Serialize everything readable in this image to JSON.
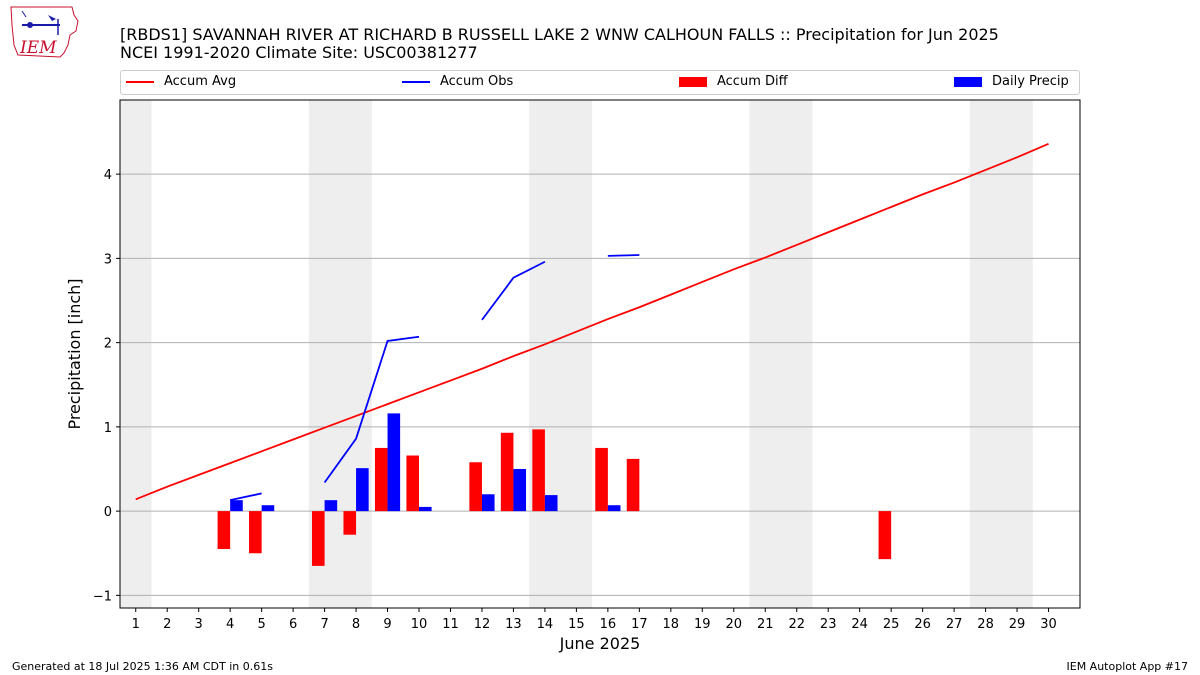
{
  "header": {
    "title_line1": "[RBDS1] SAVANNAH RIVER  AT RICHARD B RUSSELL LAKE 2 WNW CALHOUN FALLS :: Precipitation for Jun 2025",
    "title_line2": "NCEI 1991-2020 Climate Site: USC00381277"
  },
  "logo": {
    "text": "IEM"
  },
  "footer": {
    "left": "Generated at 18 Jul 2025 1:36 AM CDT in 0.61s",
    "right": "IEM Autoplot App #17"
  },
  "colors": {
    "avg": "#ff0000",
    "obs": "#0000ff",
    "diff": "#ff0000",
    "daily": "#0000ff",
    "weekend": "#eeeeee",
    "grid": "#b0b0b0"
  },
  "chart_data": {
    "type": "bar",
    "xlabel": "June 2025",
    "ylabel": "Precipitation [inch]",
    "xlim": [
      0.5,
      31
    ],
    "ylim": [
      -1.15,
      4.88
    ],
    "yticks": [
      -1,
      0,
      1,
      2,
      3,
      4
    ],
    "grid": true,
    "legend_placement": "top",
    "days": [
      1,
      2,
      3,
      4,
      5,
      6,
      7,
      8,
      9,
      10,
      11,
      12,
      13,
      14,
      15,
      16,
      17,
      18,
      19,
      20,
      21,
      22,
      23,
      24,
      25,
      26,
      27,
      28,
      29,
      30
    ],
    "shaded_spans": [
      [
        0.5,
        1.5
      ],
      [
        6.5,
        8.5
      ],
      [
        13.5,
        15.5
      ],
      [
        20.5,
        22.5
      ],
      [
        27.5,
        29.5
      ]
    ],
    "legend": [
      "Accum Avg",
      "Accum Obs",
      "Accum Diff",
      "Daily Precip"
    ],
    "series": [
      {
        "name": "Accum Avg",
        "kind": "line",
        "values": [
          0.14,
          0.29,
          0.43,
          0.57,
          0.71,
          0.85,
          0.99,
          1.13,
          1.27,
          1.41,
          1.55,
          1.69,
          1.84,
          1.98,
          2.13,
          2.28,
          2.42,
          2.57,
          2.72,
          2.87,
          3.01,
          3.16,
          3.31,
          3.46,
          3.61,
          3.76,
          3.9,
          4.05,
          4.2,
          4.36
        ]
      },
      {
        "name": "Accum Obs",
        "kind": "line",
        "segments": [
          [
            [
              4,
              0.13
            ],
            [
              5,
              0.21
            ]
          ],
          [
            [
              7,
              0.34
            ],
            [
              8,
              0.86
            ],
            [
              9,
              2.02
            ],
            [
              10,
              2.07
            ]
          ],
          [
            [
              12,
              2.27
            ],
            [
              13,
              2.77
            ],
            [
              14,
              2.96
            ]
          ],
          [
            [
              16,
              3.03
            ],
            [
              17,
              3.04
            ]
          ]
        ]
      },
      {
        "name": "Accum Diff",
        "kind": "bar",
        "points": [
          [
            4,
            -0.45
          ],
          [
            5,
            -0.5
          ],
          [
            7,
            -0.65
          ],
          [
            8,
            -0.28
          ],
          [
            9,
            0.75
          ],
          [
            10,
            0.66
          ],
          [
            12,
            0.58
          ],
          [
            13,
            0.93
          ],
          [
            14,
            0.97
          ],
          [
            16,
            0.75
          ],
          [
            17,
            0.62
          ],
          [
            25,
            -0.57
          ]
        ]
      },
      {
        "name": "Daily Precip",
        "kind": "bar",
        "points": [
          [
            4,
            0.13
          ],
          [
            5,
            0.07
          ],
          [
            7,
            0.13
          ],
          [
            8,
            0.51
          ],
          [
            9,
            1.16
          ],
          [
            10,
            0.05
          ],
          [
            12,
            0.2
          ],
          [
            13,
            0.5
          ],
          [
            14,
            0.19
          ],
          [
            16,
            0.07
          ]
        ]
      }
    ]
  }
}
